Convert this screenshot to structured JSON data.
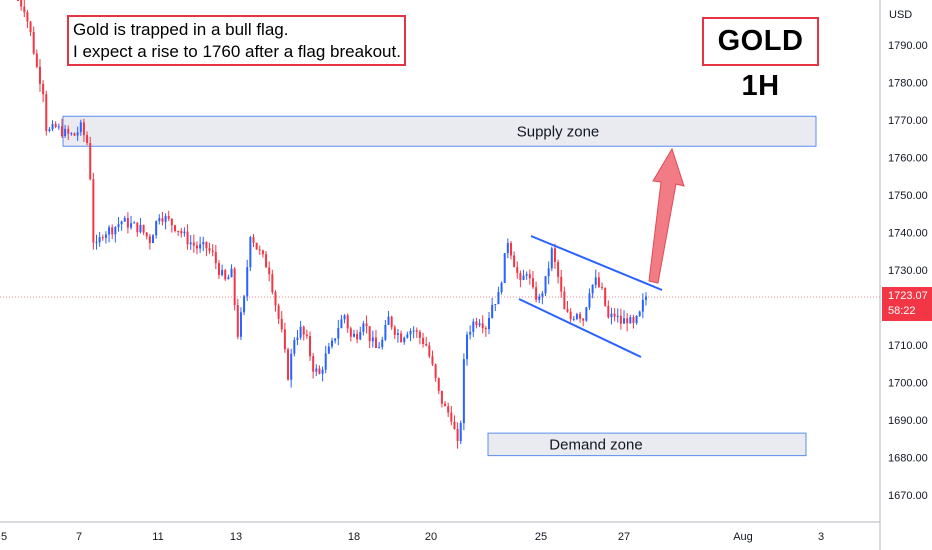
{
  "chart_data": {
    "type": "candlestick",
    "title": "GOLD 1H",
    "annotation": {
      "line1": "Gold is trapped in a bull flag.",
      "line2": "I expect a rise to 1760 after a flag breakout."
    },
    "currency": "USD",
    "y_ticks": [
      1670,
      1680,
      1690,
      1700,
      1710,
      1720,
      1730,
      1740,
      1750,
      1760,
      1770,
      1780,
      1790
    ],
    "y_tick_labels": [
      "1670.00",
      "1680.00",
      "1690.00",
      "1700.00",
      "1710.00",
      "1720.00",
      "1730.00",
      "1740.00",
      "1750.00",
      "1760.00",
      "1770.00",
      "1780.00",
      "1790.00"
    ],
    "ylim": [
      1662,
      1800
    ],
    "x_ticks": [
      "5",
      "7",
      "11",
      "13",
      "18",
      "20",
      "25",
      "25",
      "27",
      "Aug",
      "3"
    ],
    "zones": [
      {
        "label": "Supply zone",
        "low": 1763,
        "high": 1771
      },
      {
        "label": "Demand zone",
        "low": 1680.5,
        "high": 1686.5
      }
    ],
    "current_price": "1723.07",
    "countdown": "58:22",
    "flag_upper": [
      [
        1740,
        1726
      ]
    ],
    "flag_lower": [
      [
        1719,
        1707
      ]
    ],
    "target": 1763,
    "path": [
      [
        0,
        1802
      ],
      [
        2,
        1800
      ],
      [
        4,
        1793
      ],
      [
        6,
        1784
      ],
      [
        8,
        1778
      ],
      [
        9,
        1768
      ],
      [
        10,
        1767
      ],
      [
        12,
        1768
      ],
      [
        14,
        1767
      ],
      [
        16,
        1766
      ],
      [
        18,
        1766
      ],
      [
        20,
        1768
      ],
      [
        22,
        1764
      ],
      [
        23,
        1755
      ],
      [
        24,
        1738
      ],
      [
        25,
        1736
      ],
      [
        27,
        1740
      ],
      [
        30,
        1741
      ],
      [
        33,
        1743
      ],
      [
        36,
        1742
      ],
      [
        39,
        1741
      ],
      [
        42,
        1738
      ],
      [
        45,
        1745
      ],
      [
        48,
        1743
      ],
      [
        51,
        1741
      ],
      [
        54,
        1738
      ],
      [
        57,
        1736
      ],
      [
        60,
        1736
      ],
      [
        62,
        1734
      ],
      [
        64,
        1730
      ],
      [
        66,
        1727
      ],
      [
        68,
        1729
      ],
      [
        70,
        1713
      ],
      [
        72,
        1722
      ],
      [
        74,
        1740
      ],
      [
        76,
        1736
      ],
      [
        78,
        1733
      ],
      [
        80,
        1730
      ],
      [
        82,
        1721
      ],
      [
        84,
        1713
      ],
      [
        86,
        1702
      ],
      [
        88,
        1712
      ],
      [
        90,
        1714
      ],
      [
        92,
        1711
      ],
      [
        94,
        1704
      ],
      [
        96,
        1702
      ],
      [
        98,
        1707
      ],
      [
        100,
        1710
      ],
      [
        102,
        1715
      ],
      [
        104,
        1718
      ],
      [
        106,
        1712
      ],
      [
        108,
        1713
      ],
      [
        110,
        1717
      ],
      [
        112,
        1712
      ],
      [
        114,
        1709
      ],
      [
        116,
        1711
      ],
      [
        118,
        1717
      ],
      [
        120,
        1714
      ],
      [
        122,
        1712
      ],
      [
        124,
        1714
      ],
      [
        126,
        1714
      ],
      [
        128,
        1712
      ],
      [
        130,
        1710
      ],
      [
        132,
        1704
      ],
      [
        134,
        1697
      ],
      [
        136,
        1693
      ],
      [
        138,
        1691
      ],
      [
        140,
        1683
      ],
      [
        141,
        1690
      ],
      [
        142,
        1705
      ],
      [
        143,
        1713
      ],
      [
        145,
        1716
      ],
      [
        147,
        1717
      ],
      [
        149,
        1715
      ],
      [
        151,
        1721
      ],
      [
        153,
        1723
      ],
      [
        155,
        1733
      ],
      [
        156,
        1738
      ],
      [
        158,
        1732
      ],
      [
        160,
        1726
      ],
      [
        162,
        1730
      ],
      [
        164,
        1724
      ],
      [
        166,
        1722
      ],
      [
        168,
        1727
      ],
      [
        170,
        1735
      ],
      [
        172,
        1728
      ],
      [
        174,
        1719
      ],
      [
        176,
        1717
      ],
      [
        178,
        1719
      ],
      [
        180,
        1717
      ],
      [
        182,
        1725
      ],
      [
        184,
        1727
      ],
      [
        186,
        1724
      ],
      [
        188,
        1717
      ],
      [
        190,
        1718
      ],
      [
        192,
        1716
      ],
      [
        194,
        1717
      ],
      [
        196,
        1715
      ],
      [
        198,
        1718
      ],
      [
        199,
        1721
      ],
      [
        200,
        1723
      ]
    ]
  }
}
